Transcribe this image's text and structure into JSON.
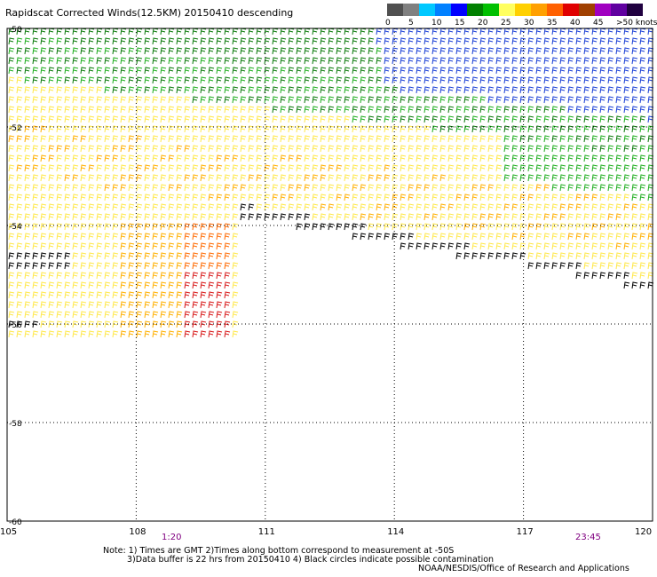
{
  "title": "Rapidscat Corrected Winds(12.5KM) 20150410 descending",
  "legend": {
    "ticks": [
      "0",
      "5",
      "10",
      "15",
      "20",
      "25",
      "30",
      "35",
      "40",
      "45",
      ">50 knots"
    ],
    "colors": [
      "#505050",
      "#808080",
      "#00c8ff",
      "#0080ff",
      "#0000ff",
      "#008000",
      "#00c000",
      "#ffff60",
      "#ffd000",
      "#ffa000",
      "#ff6000",
      "#e00000",
      "#a04000",
      "#a000c0",
      "#6000a0",
      "#200040"
    ]
  },
  "axes": {
    "lon_labels": [
      "105",
      "108",
      "111",
      "114",
      "117",
      "120"
    ],
    "lat_labels": [
      "-50",
      "-52",
      "-54",
      "-56",
      "-58",
      "-60"
    ]
  },
  "times": {
    "left": "1:20",
    "right": "23:45"
  },
  "notes": {
    "line1": "Note: 1) Times are GMT 2)Times along bottom correspond to measurement at -50S",
    "line2": "3)Data buffer is 22 hrs from 20150410 4) Black circles indicate possible contamination",
    "line3": "NOAA/NESDIS/Office of Research and Applications"
  },
  "colors": {
    "blue": "#1a3fd6",
    "green_dark": "#0a7a0a",
    "green": "#1fae1f",
    "yellow": "#ffe84a",
    "orange": "#ffb000",
    "red_orange": "#ff6a00",
    "red": "#d81818",
    "black": "#000000",
    "time": "#800080"
  }
}
